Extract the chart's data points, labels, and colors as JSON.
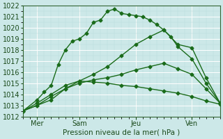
{
  "xlabel": "Pression niveau de la mer( hPa )",
  "bg_color": "#cce8e8",
  "grid_major_color": "#ffffff",
  "grid_minor_color": "#bbdddd",
  "line_color": "#1a6b1a",
  "spine_color": "#336633",
  "tick_color": "#1a4a1a",
  "ylim": [
    1012,
    1022
  ],
  "xlim": [
    0,
    14
  ],
  "yticks": [
    1012,
    1013,
    1014,
    1015,
    1016,
    1017,
    1018,
    1019,
    1020,
    1021,
    1022
  ],
  "xtick_positions": [
    1,
    4,
    8,
    12
  ],
  "xtick_labels": [
    "Mer",
    "Sam",
    "Jeu",
    "Ven"
  ],
  "vline_positions": [
    1,
    4,
    8,
    12
  ],
  "series": [
    {
      "x": [
        0,
        1,
        1.5,
        2,
        2.5,
        3,
        3.5,
        4,
        4.5,
        5,
        5.5,
        6,
        6.5,
        7,
        7.5,
        8,
        8.5,
        9,
        9.5,
        10,
        10.5,
        11,
        12,
        13,
        14
      ],
      "y": [
        1012.5,
        1013.5,
        1014.2,
        1014.8,
        1016.7,
        1018.0,
        1018.8,
        1019.0,
        1019.5,
        1020.5,
        1020.7,
        1021.5,
        1021.7,
        1021.3,
        1021.2,
        1021.1,
        1021.0,
        1020.7,
        1020.3,
        1019.8,
        1019.2,
        1018.3,
        1017.2,
        1015.0,
        1013.2
      ],
      "marker": "D",
      "markersize": 2.5,
      "linewidth": 1.0
    },
    {
      "x": [
        0,
        1,
        2,
        3,
        4,
        5,
        6,
        7,
        8,
        9,
        10,
        11,
        12,
        13,
        14
      ],
      "y": [
        1012.5,
        1013.2,
        1014.0,
        1014.8,
        1015.2,
        1015.8,
        1016.5,
        1017.5,
        1018.5,
        1019.2,
        1019.8,
        1018.5,
        1018.2,
        1015.5,
        1013.2
      ],
      "marker": "D",
      "markersize": 2.5,
      "linewidth": 1.0
    },
    {
      "x": [
        0,
        1,
        2,
        3,
        4,
        5,
        6,
        7,
        8,
        9,
        10,
        11,
        12,
        13,
        14
      ],
      "y": [
        1012.5,
        1013.0,
        1013.8,
        1014.5,
        1015.0,
        1015.3,
        1015.5,
        1015.8,
        1016.2,
        1016.5,
        1016.8,
        1016.3,
        1015.8,
        1014.5,
        1013.2
      ],
      "marker": "D",
      "markersize": 2.5,
      "linewidth": 1.0
    },
    {
      "x": [
        0,
        1,
        2,
        3,
        4,
        5,
        6,
        7,
        8,
        9,
        10,
        11,
        12,
        13,
        14
      ],
      "y": [
        1012.5,
        1013.0,
        1013.5,
        1014.5,
        1015.2,
        1015.1,
        1015.0,
        1014.8,
        1014.7,
        1014.5,
        1014.3,
        1014.1,
        1013.8,
        1013.4,
        1013.1
      ],
      "marker": "D",
      "markersize": 2.5,
      "linewidth": 1.0
    }
  ]
}
